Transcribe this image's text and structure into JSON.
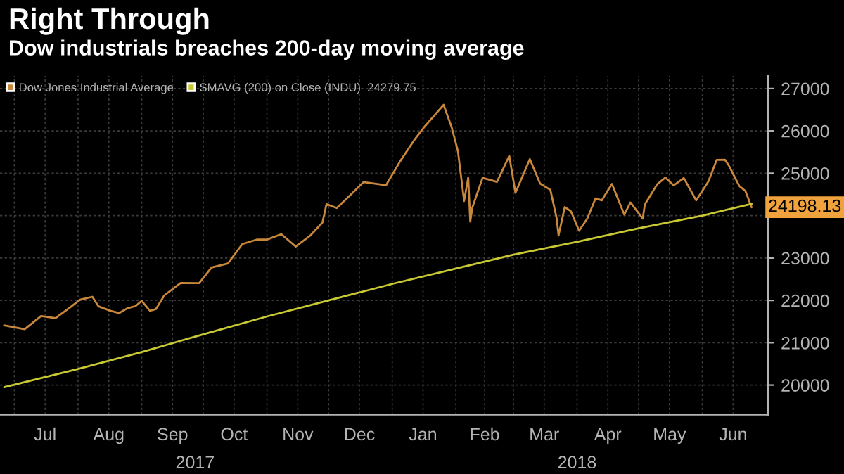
{
  "chart_data": {
    "type": "line",
    "title": "Right Through",
    "subtitle": "Dow industrials breaches 200-day moving average",
    "series": [
      {
        "name": "Dow Jones Industrial Average",
        "color": "#c8873a",
        "x": [
          "2017-06-26",
          "2017-07-06",
          "2017-07-14",
          "2017-07-21",
          "2017-07-28",
          "2017-08-02",
          "2017-08-08",
          "2017-08-11",
          "2017-08-17",
          "2017-08-21",
          "2017-08-25",
          "2017-08-29",
          "2017-09-01",
          "2017-09-05",
          "2017-09-08",
          "2017-09-12",
          "2017-09-20",
          "2017-09-29",
          "2017-10-05",
          "2017-10-13",
          "2017-10-20",
          "2017-10-27",
          "2017-11-01",
          "2017-11-08",
          "2017-11-15",
          "2017-11-22",
          "2017-11-28",
          "2017-11-30",
          "2017-12-05",
          "2017-12-12",
          "2017-12-18",
          "2017-12-29",
          "2018-01-05",
          "2018-01-12",
          "2018-01-17",
          "2018-01-26",
          "2018-01-30",
          "2018-02-02",
          "2018-02-05",
          "2018-02-07",
          "2018-02-08",
          "2018-02-09",
          "2018-02-14",
          "2018-02-21",
          "2018-02-27",
          "2018-03-02",
          "2018-03-09",
          "2018-03-14",
          "2018-03-19",
          "2018-03-22",
          "2018-03-23",
          "2018-03-26",
          "2018-03-29",
          "2018-04-02",
          "2018-04-06",
          "2018-04-10",
          "2018-04-13",
          "2018-04-18",
          "2018-04-24",
          "2018-04-27",
          "2018-05-03",
          "2018-05-04",
          "2018-05-10",
          "2018-05-14",
          "2018-05-18",
          "2018-05-23",
          "2018-05-29",
          "2018-06-04",
          "2018-06-08",
          "2018-06-12",
          "2018-06-14",
          "2018-06-19",
          "2018-06-22",
          "2018-06-25"
        ],
        "values": [
          21410,
          21320,
          21630,
          21580,
          21830,
          22016,
          22085,
          21858,
          21750,
          21700,
          21813,
          21865,
          21987,
          21753,
          21797,
          22118,
          22412,
          22405,
          22775,
          22871,
          23329,
          23434,
          23435,
          23563,
          23271,
          23526,
          23836,
          24272,
          24180,
          24504,
          24792,
          24719,
          25295,
          25803,
          26115,
          26616,
          26077,
          25520,
          24346,
          24893,
          23860,
          24190,
          24893,
          24798,
          25410,
          24538,
          25335,
          24758,
          24610,
          23957,
          23533,
          24202,
          24103,
          23644,
          23932,
          24408,
          24360,
          24748,
          24024,
          24311,
          23930,
          24262,
          24739,
          24899,
          24715,
          24886,
          24361,
          24813,
          25316,
          25320,
          25175,
          24700,
          24580,
          24198.13
        ]
      },
      {
        "name": "SMAVG (200) on Close (INDU)  24279.75",
        "color": "#c8c832",
        "x": [
          "2017-06-26",
          "2017-08-01",
          "2017-09-01",
          "2017-10-01",
          "2017-11-01",
          "2017-12-01",
          "2018-01-02",
          "2018-02-01",
          "2018-03-01",
          "2018-04-01",
          "2018-05-01",
          "2018-06-01",
          "2018-06-25"
        ],
        "values": [
          19950,
          20380,
          20780,
          21200,
          21620,
          22000,
          22400,
          22750,
          23080,
          23380,
          23700,
          24000,
          24279.75
        ]
      }
    ],
    "annotations": [
      {
        "text": "24198.13",
        "x": "2018-06-25",
        "y": 24198.13
      }
    ],
    "xlim": [
      "2017-06-24",
      "2018-07-03"
    ],
    "xticks": [
      {
        "value": "2017-07-01",
        "label": null
      },
      {
        "value": "2017-07-16",
        "label": "Jul"
      },
      {
        "value": "2017-08-01",
        "label": null
      },
      {
        "value": "2017-08-16",
        "label": "Aug"
      },
      {
        "value": "2017-09-01",
        "label": null
      },
      {
        "value": "2017-09-16",
        "label": "Sep"
      },
      {
        "value": "2017-10-01",
        "label": null
      },
      {
        "value": "2017-10-16",
        "label": "Oct"
      },
      {
        "value": "2017-11-01",
        "label": null
      },
      {
        "value": "2017-11-16",
        "label": "Nov"
      },
      {
        "value": "2017-12-01",
        "label": null
      },
      {
        "value": "2017-12-16",
        "label": "Dec"
      },
      {
        "value": "2018-01-01",
        "label": null
      },
      {
        "value": "2018-01-16",
        "label": "Jan"
      },
      {
        "value": "2018-02-01",
        "label": null
      },
      {
        "value": "2018-02-15",
        "label": "Feb"
      },
      {
        "value": "2018-03-01",
        "label": null
      },
      {
        "value": "2018-03-16",
        "label": "Mar"
      },
      {
        "value": "2018-04-01",
        "label": null
      },
      {
        "value": "2018-04-16",
        "label": "Apr"
      },
      {
        "value": "2018-05-01",
        "label": null
      },
      {
        "value": "2018-05-16",
        "label": "May"
      },
      {
        "value": "2018-06-01",
        "label": null
      },
      {
        "value": "2018-06-16",
        "label": "Jun"
      }
    ],
    "x2lim": [
      "2017-06-24",
      "2018-07-03"
    ],
    "x2ticks": [
      {
        "value": "2017-09-27",
        "label": "2017"
      },
      {
        "value": "2018-04-01",
        "label": "2018"
      }
    ],
    "ylim": [
      19300,
      27300
    ],
    "yticks": [
      20000,
      21000,
      22000,
      23000,
      {
        "value": 24000,
        "label": null
      },
      25000,
      26000,
      27000
    ],
    "grid": true,
    "legend": "top left",
    "marker": "none",
    "line_style": "solid"
  }
}
